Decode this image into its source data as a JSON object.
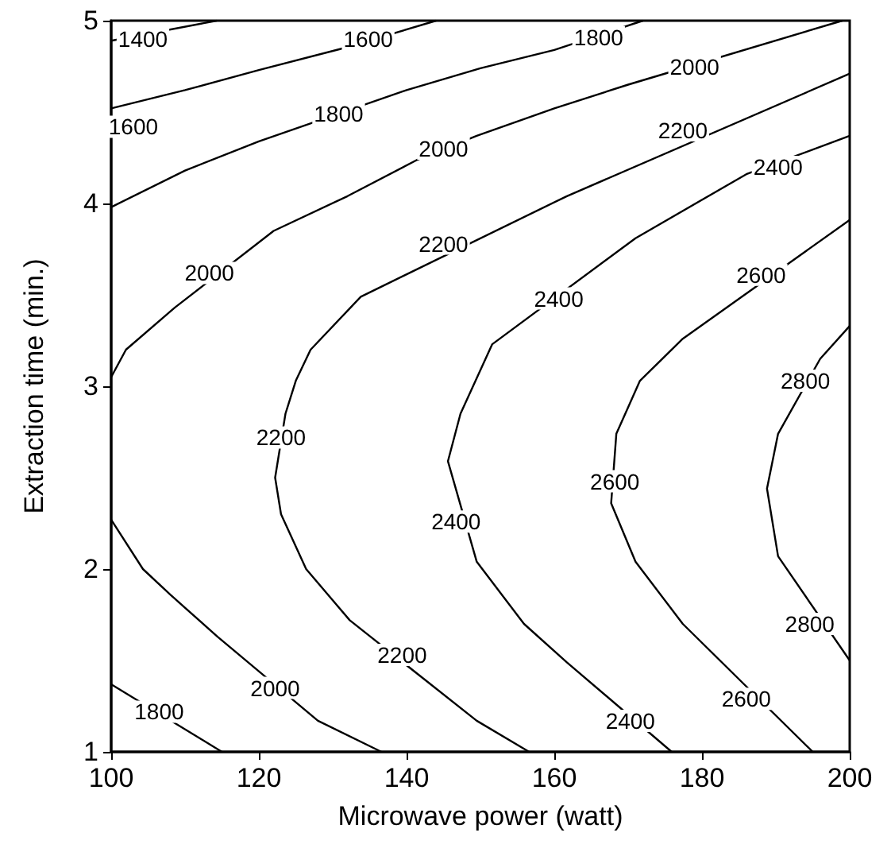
{
  "chart_data": {
    "type": "line",
    "xlabel": "Microwave power (watt)",
    "ylabel": "Extraction time (min.)",
    "xlim": [
      100,
      200
    ],
    "ylim": [
      1,
      5
    ],
    "xticks": [
      100,
      120,
      140,
      160,
      180,
      200
    ],
    "yticks": [
      1,
      2,
      3,
      4,
      5
    ],
    "grid": false,
    "marker": "none",
    "series": [
      {
        "color": "#000000",
        "x": [
          100,
          114.3
        ],
        "values": [
          4.89,
          5
        ]
      },
      {
        "color": "#000000",
        "x": [
          100,
          110,
          120,
          131.5,
          144
        ],
        "values": [
          4.52,
          4.62,
          4.73,
          4.85,
          5
        ]
      },
      {
        "color": "#000000",
        "x": [
          100,
          110,
          120,
          140,
          150,
          160,
          172
        ],
        "values": [
          3.98,
          4.18,
          4.34,
          4.62,
          4.74,
          4.84,
          5
        ]
      },
      {
        "color": "#000000",
        "x": [
          115,
          100
        ],
        "values": [
          1,
          1.37
        ]
      },
      {
        "color": "#000000",
        "x": [
          100,
          102,
          108.6,
          122,
          132,
          141.5,
          149.5,
          160,
          170,
          199
        ],
        "values": [
          3.05,
          3.2,
          3.43,
          3.85,
          4.04,
          4.24,
          4.37,
          4.52,
          4.65,
          5
        ]
      },
      {
        "color": "#000000",
        "x": [
          136.6,
          128,
          114.4,
          108,
          104.3,
          100
        ],
        "values": [
          1,
          1.17,
          1.63,
          1.86,
          2.0,
          2.27
        ]
      },
      {
        "color": "#000000",
        "x": [
          156.6,
          149.5,
          132.3,
          126.4,
          123,
          122.2,
          123.6,
          125,
          127,
          133.8,
          161.7,
          200
        ],
        "values": [
          1,
          1.17,
          1.72,
          2.0,
          2.3,
          2.5,
          2.85,
          3.03,
          3.2,
          3.49,
          4.04,
          4.71
        ]
      },
      {
        "color": "#000000",
        "x": [
          175.9,
          161.7,
          155.9,
          149.5,
          145.6,
          147.3,
          151.6,
          171,
          186,
          200
        ],
        "values": [
          1,
          1.49,
          1.7,
          2.04,
          2.59,
          2.85,
          3.23,
          3.81,
          4.16,
          4.37
        ]
      },
      {
        "color": "#000000",
        "x": [
          195,
          177.4,
          171,
          167.7,
          168.4,
          171.6,
          177.4,
          200
        ],
        "values": [
          1,
          1.7,
          2.04,
          2.36,
          2.74,
          3.03,
          3.26,
          3.91
        ]
      },
      {
        "color": "#000000",
        "x": [
          200,
          190.3,
          188.8,
          190.3,
          196,
          200
        ],
        "values": [
          1.5,
          2.07,
          2.44,
          2.74,
          3.15,
          3.33
        ]
      }
    ],
    "annotations": [
      {
        "text": "1400",
        "x": 104.3,
        "y": 4.9
      },
      {
        "text": "1600",
        "x": 134.8,
        "y": 4.9
      },
      {
        "text": "1600",
        "x": 103,
        "y": 4.42
      },
      {
        "text": "1800",
        "x": 130.8,
        "y": 4.49
      },
      {
        "text": "1800",
        "x": 166,
        "y": 4.91
      },
      {
        "text": "2000",
        "x": 179,
        "y": 4.75
      },
      {
        "text": "2000",
        "x": 145,
        "y": 4.3
      },
      {
        "text": "2000",
        "x": 113.3,
        "y": 3.62
      },
      {
        "text": "2200",
        "x": 177.4,
        "y": 4.4
      },
      {
        "text": "2200",
        "x": 145,
        "y": 3.78
      },
      {
        "text": "2400",
        "x": 190.3,
        "y": 4.2
      },
      {
        "text": "2400",
        "x": 160.6,
        "y": 3.48
      },
      {
        "text": "2600",
        "x": 188,
        "y": 3.61
      },
      {
        "text": "2800",
        "x": 194,
        "y": 3.03
      },
      {
        "text": "2200",
        "x": 123,
        "y": 2.72
      },
      {
        "text": "2400",
        "x": 146.7,
        "y": 2.26
      },
      {
        "text": "2600",
        "x": 168.2,
        "y": 2.48
      },
      {
        "text": "2800",
        "x": 194.6,
        "y": 1.7
      },
      {
        "text": "2600",
        "x": 186,
        "y": 1.29
      },
      {
        "text": "2400",
        "x": 170.3,
        "y": 1.17
      },
      {
        "text": "2200",
        "x": 139.4,
        "y": 1.53
      },
      {
        "text": "2000",
        "x": 122.2,
        "y": 1.35
      },
      {
        "text": "1800",
        "x": 106.5,
        "y": 1.22
      }
    ]
  }
}
